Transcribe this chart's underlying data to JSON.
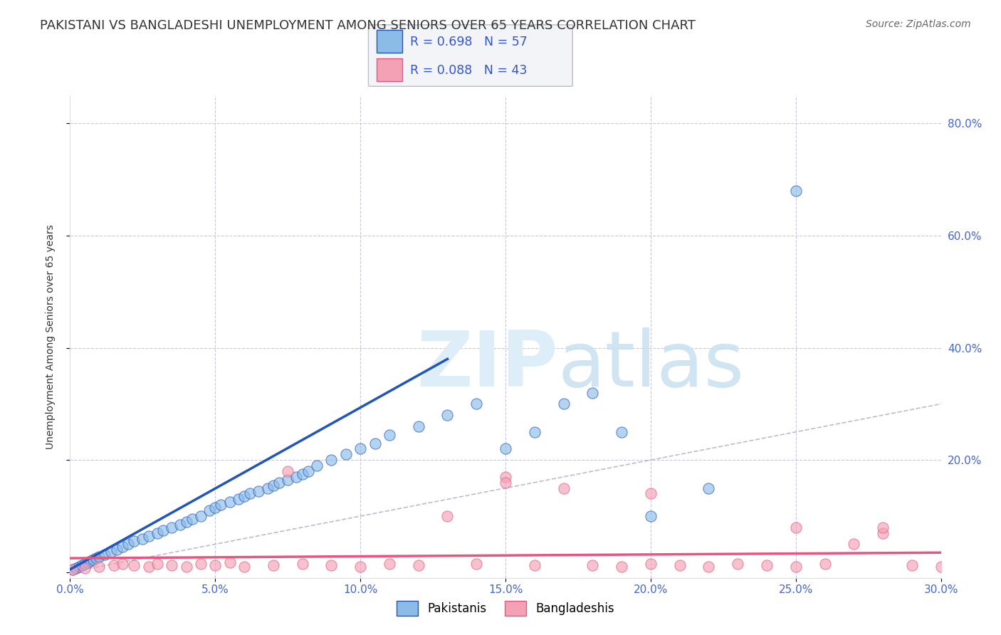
{
  "title": "PAKISTANI VS BANGLADESHI UNEMPLOYMENT AMONG SENIORS OVER 65 YEARS CORRELATION CHART",
  "source": "Source: ZipAtlas.com",
  "ylabel": "Unemployment Among Seniors over 65 years",
  "xlim": [
    0.0,
    0.3
  ],
  "ylim": [
    -0.01,
    0.85
  ],
  "xticks": [
    0.0,
    0.05,
    0.1,
    0.15,
    0.2,
    0.25,
    0.3
  ],
  "xticklabels": [
    "0.0%",
    "5.0%",
    "10.0%",
    "15.0%",
    "20.0%",
    "25.0%",
    "30.0%"
  ],
  "yticks": [
    0.0,
    0.2,
    0.4,
    0.6,
    0.8
  ],
  "yticklabels_right": [
    "",
    "20.0%",
    "40.0%",
    "60.0%",
    "80.0%"
  ],
  "pakistani_R": 0.698,
  "pakistani_N": 57,
  "bangladeshi_R": 0.088,
  "bangladeshi_N": 43,
  "pakistani_color": "#8bbce8",
  "bangladeshi_color": "#f4a0b5",
  "pakistani_line_color": "#2255bb",
  "bangladeshi_line_color": "#e85580",
  "diagonal_color": "#aaaacc",
  "background_color": "#ffffff",
  "grid_color": "#c8c8dc",
  "title_color": "#333333",
  "source_color": "#666666",
  "tick_color": "#4466cc",
  "ylabel_color": "#333333",
  "title_fontsize": 13,
  "source_fontsize": 10,
  "axis_label_fontsize": 10,
  "tick_fontsize": 11,
  "pakistani_x": [
    0.001,
    0.002,
    0.003,
    0.004,
    0.005,
    0.006,
    0.007,
    0.008,
    0.009,
    0.01,
    0.012,
    0.014,
    0.016,
    0.018,
    0.02,
    0.022,
    0.025,
    0.027,
    0.03,
    0.032,
    0.035,
    0.038,
    0.04,
    0.042,
    0.045,
    0.048,
    0.05,
    0.052,
    0.055,
    0.058,
    0.06,
    0.062,
    0.065,
    0.068,
    0.07,
    0.072,
    0.075,
    0.078,
    0.08,
    0.082,
    0.085,
    0.09,
    0.095,
    0.1,
    0.105,
    0.11,
    0.12,
    0.13,
    0.14,
    0.15,
    0.16,
    0.17,
    0.18,
    0.19,
    0.2,
    0.22,
    0.25
  ],
  "pakistani_y": [
    0.005,
    0.008,
    0.01,
    0.012,
    0.015,
    0.018,
    0.02,
    0.022,
    0.025,
    0.028,
    0.032,
    0.036,
    0.04,
    0.045,
    0.05,
    0.055,
    0.06,
    0.065,
    0.07,
    0.075,
    0.08,
    0.085,
    0.09,
    0.095,
    0.1,
    0.11,
    0.115,
    0.12,
    0.125,
    0.13,
    0.135,
    0.14,
    0.145,
    0.15,
    0.155,
    0.16,
    0.165,
    0.17,
    0.175,
    0.18,
    0.19,
    0.2,
    0.21,
    0.22,
    0.23,
    0.245,
    0.26,
    0.28,
    0.3,
    0.22,
    0.25,
    0.3,
    0.32,
    0.25,
    0.1,
    0.15,
    0.68
  ],
  "bangladeshi_x": [
    0.001,
    0.005,
    0.01,
    0.015,
    0.018,
    0.022,
    0.027,
    0.03,
    0.035,
    0.04,
    0.045,
    0.05,
    0.055,
    0.06,
    0.07,
    0.075,
    0.08,
    0.09,
    0.1,
    0.11,
    0.12,
    0.13,
    0.14,
    0.15,
    0.16,
    0.17,
    0.18,
    0.19,
    0.2,
    0.21,
    0.22,
    0.23,
    0.24,
    0.25,
    0.26,
    0.27,
    0.28,
    0.29,
    0.3,
    0.2,
    0.15,
    0.25,
    0.28
  ],
  "bangladeshi_y": [
    0.005,
    0.008,
    0.01,
    0.012,
    0.015,
    0.012,
    0.01,
    0.015,
    0.012,
    0.01,
    0.015,
    0.012,
    0.017,
    0.01,
    0.012,
    0.18,
    0.015,
    0.012,
    0.01,
    0.015,
    0.012,
    0.1,
    0.015,
    0.17,
    0.012,
    0.15,
    0.012,
    0.01,
    0.015,
    0.012,
    0.01,
    0.015,
    0.012,
    0.01,
    0.015,
    0.05,
    0.07,
    0.012,
    0.01,
    0.14,
    0.16,
    0.08,
    0.08
  ],
  "pak_trend_x0": 0.0,
  "pak_trend_x1": 0.13,
  "pak_trend_y0": 0.005,
  "pak_trend_y1": 0.38,
  "ban_trend_x0": 0.0,
  "ban_trend_x1": 0.3,
  "ban_trend_y0": 0.025,
  "ban_trend_y1": 0.035
}
